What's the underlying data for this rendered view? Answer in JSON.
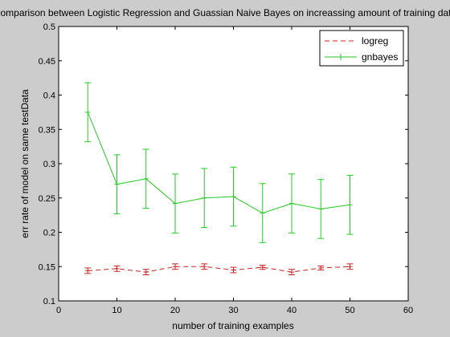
{
  "chart_data": {
    "type": "line",
    "title": "Comparison between Logistic Regression and Guassian Naive Bayes on increassing amount of training data",
    "xlabel": "number of training examples",
    "ylabel": "err rate of model on same testData",
    "xlim": [
      0,
      60
    ],
    "ylim": [
      0.1,
      0.5
    ],
    "xticks": [
      0,
      10,
      20,
      30,
      40,
      50,
      60
    ],
    "yticks": [
      0.1,
      0.15,
      0.2,
      0.25,
      0.3,
      0.35,
      0.4,
      0.45,
      0.5
    ],
    "grid": false,
    "legend_position": "top-right",
    "x": [
      5,
      10,
      15,
      20,
      25,
      30,
      35,
      40,
      45,
      50
    ],
    "series": [
      {
        "name": "logreg",
        "color": "#cc2222",
        "line_style": "dashed",
        "values": [
          0.144,
          0.147,
          0.142,
          0.15,
          0.15,
          0.145,
          0.149,
          0.142,
          0.148,
          0.15
        ],
        "errors": [
          0.004,
          0.004,
          0.004,
          0.004,
          0.004,
          0.004,
          0.003,
          0.004,
          0.003,
          0.004
        ]
      },
      {
        "name": "gnbayes",
        "color": "#22cc22",
        "line_style": "solid",
        "values": [
          0.375,
          0.27,
          0.278,
          0.242,
          0.25,
          0.252,
          0.228,
          0.242,
          0.234,
          0.24
        ],
        "errors": [
          0.043,
          0.043,
          0.043,
          0.043,
          0.043,
          0.043,
          0.043,
          0.043,
          0.043,
          0.043
        ]
      }
    ]
  }
}
